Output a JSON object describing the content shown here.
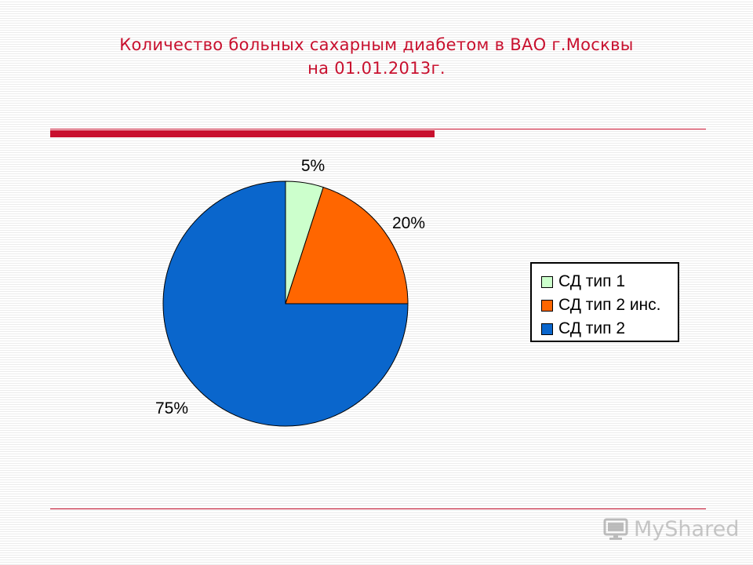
{
  "chart_data": {
    "type": "pie",
    "title": "Количество больных сахарным диабетом в ВАО г.Москвы",
    "subtitle": "на 01.01.2013г.",
    "categories": [
      "СД тип 1",
      "СД тип 2 инс.",
      "СД тип 2"
    ],
    "values": [
      5,
      20,
      75
    ],
    "data_labels": [
      "5%",
      "20%",
      "75%"
    ],
    "colors": [
      "#ccffcc",
      "#ff6600",
      "#0a66cc"
    ],
    "legend_placement": "right"
  },
  "watermark": {
    "text": "MyShared",
    "icon": "monitor-icon"
  }
}
